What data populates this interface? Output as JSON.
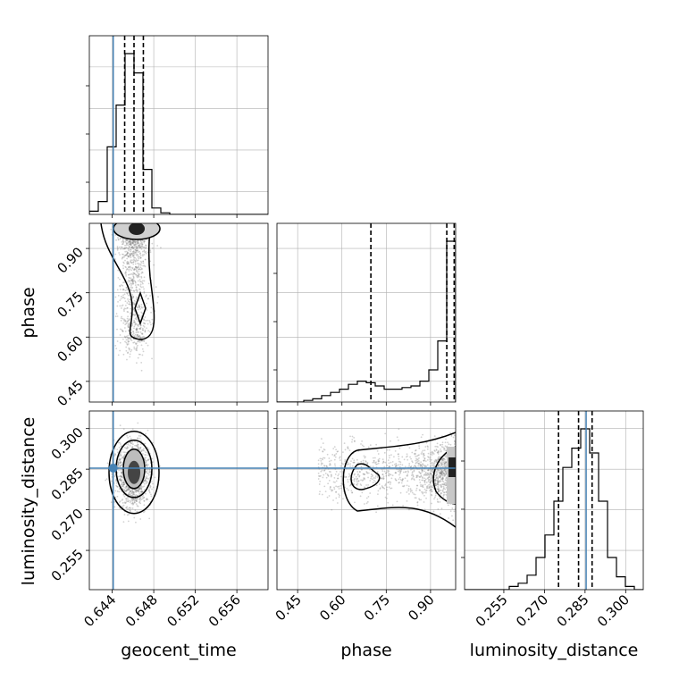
{
  "chart_data": {
    "type": "corner",
    "parameters": [
      "geocent_time",
      "phase",
      "luminosity_distance"
    ],
    "injection": {
      "geocent_time": 0.6441,
      "phase": null,
      "luminosity_distance": 0.2854
    },
    "colors": {
      "injection": "#4682b4",
      "hist": "#000000",
      "contour": "#000000",
      "grid": "#b0b0b0",
      "scatter": "#7f7f7f"
    },
    "grid": true,
    "axes": {
      "geocent_time": {
        "range": [
          0.6418,
          0.659
        ],
        "ticks": [
          0.644,
          0.648,
          0.652,
          0.656
        ],
        "tick_labels": [
          "0.644",
          "0.648",
          "0.652",
          "0.656"
        ]
      },
      "phase": {
        "range": [
          0.38,
          0.985
        ],
        "ticks": [
          0.45,
          0.6,
          0.75,
          0.9
        ],
        "tick_labels": [
          "0.45",
          "0.60",
          "0.75",
          "0.90"
        ]
      },
      "luminosity_distance": {
        "range": [
          0.2405,
          0.3065
        ],
        "ticks": [
          0.255,
          0.27,
          0.285,
          0.3
        ],
        "tick_labels": [
          "0.255",
          "0.270",
          "0.285",
          "0.300"
        ]
      }
    },
    "histograms": {
      "geocent_time": {
        "bin_edges": [
          0.6418,
          0.64266,
          0.64352,
          0.64438,
          0.64524,
          0.6461,
          0.64696,
          0.64782,
          0.64868,
          0.64954,
          0.6504,
          0.65126,
          0.65212,
          0.65298,
          0.65384,
          0.6547,
          0.65556,
          0.65642,
          0.65728,
          0.65814,
          0.659
        ],
        "counts": [
          2,
          8,
          42,
          68,
          100,
          88,
          28,
          4,
          1,
          0,
          0,
          0,
          0,
          0,
          0,
          0,
          0,
          0,
          0,
          0
        ],
        "quantiles": [
          0.6452,
          0.6461,
          0.647
        ]
      },
      "phase": {
        "bin_edges": [
          0.38,
          0.41025,
          0.4405,
          0.47075,
          0.501,
          0.53125,
          0.5615,
          0.59175,
          0.622,
          0.65225,
          0.6825,
          0.71275,
          0.743,
          0.77325,
          0.8035,
          0.83375,
          0.864,
          0.89425,
          0.9245,
          0.95475,
          0.985
        ],
        "counts": [
          0,
          0,
          0,
          1,
          2,
          4,
          6,
          8,
          11,
          13,
          12,
          10,
          8,
          8,
          9,
          10,
          13,
          20,
          38,
          100
        ],
        "quantiles": [
          0.698,
          0.955,
          0.98
        ]
      },
      "luminosity_distance": {
        "bin_edges": [
          0.2405,
          0.2438,
          0.2471,
          0.2504,
          0.2537,
          0.257,
          0.2603,
          0.2636,
          0.2669,
          0.2702,
          0.2735,
          0.2768,
          0.2801,
          0.2834,
          0.2867,
          0.29,
          0.2933,
          0.2966,
          0.2999,
          0.3032,
          0.3065
        ],
        "counts": [
          0,
          0,
          0,
          0,
          0,
          2,
          4,
          9,
          20,
          34,
          55,
          76,
          88,
          100,
          85,
          55,
          20,
          8,
          2,
          0
        ],
        "quantiles": [
          0.2752,
          0.2826,
          0.2876
        ]
      }
    },
    "posterior_2d": {
      "phase_vs_geocent_time": {
        "x": "geocent_time",
        "y": "phase",
        "mode_x": 0.6455,
        "mode_y": 0.975,
        "secondary_mode_y": 0.69
      },
      "luminosity_distance_vs_geocent_time": {
        "x": "geocent_time",
        "y": "luminosity_distance",
        "mode_x": 0.6461,
        "mode_y": 0.2838
      },
      "luminosity_distance_vs_phase": {
        "x": "phase",
        "y": "luminosity_distance",
        "mode_x": 0.975,
        "mode_y": 0.2845,
        "secondary_mode_x": 0.68
      }
    }
  }
}
